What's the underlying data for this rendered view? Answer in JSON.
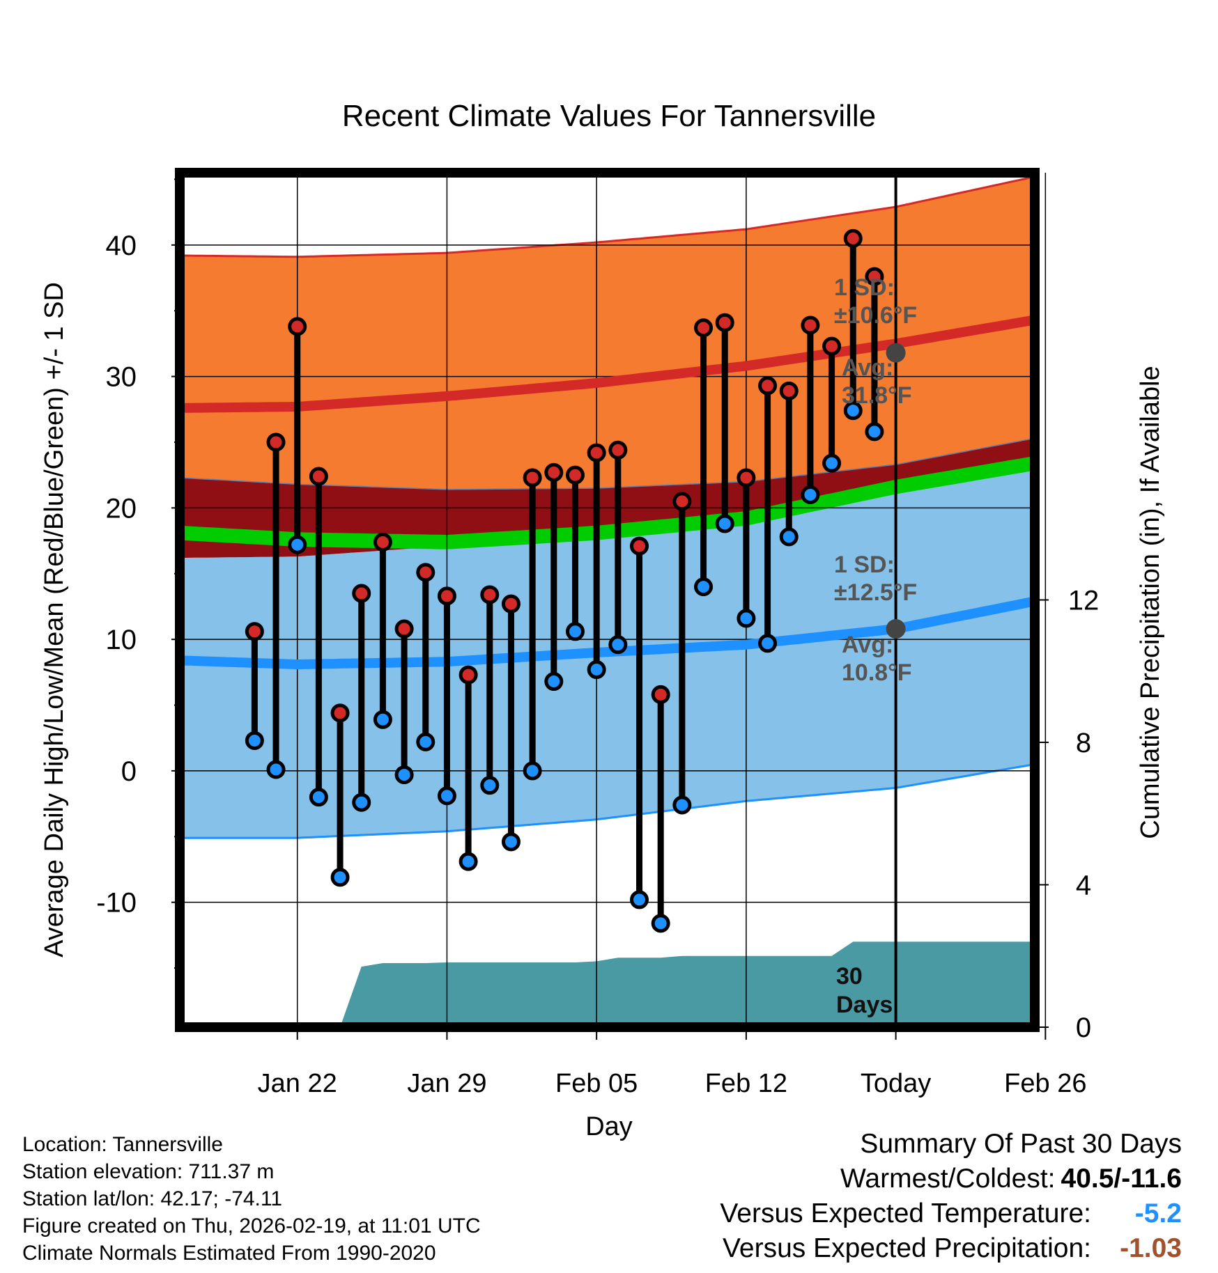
{
  "chart_data": {
    "type": "line",
    "title": "Recent Climate Values For Tannersville",
    "xlabel": "Day",
    "ylabel": "Average Daily High/Low/Mean (Red/Blue/Green) +/- 1 SD",
    "y2label": "Cumulative Precipitation (in), If Available",
    "ylim": [
      -19.5,
      45.5
    ],
    "y2lim": [
      0,
      24
    ],
    "xlim": [
      -5.5,
      34.5
    ],
    "y_ticks": [
      "-10",
      "0",
      "10",
      "20",
      "30",
      "40"
    ],
    "y2_ticks": [
      "0",
      "4",
      "8",
      "12"
    ],
    "x_ticks": [
      {
        "day": 0,
        "label": "Jan 22"
      },
      {
        "day": 7,
        "label": "Jan 29"
      },
      {
        "day": 14,
        "label": "Feb 05"
      },
      {
        "day": 21,
        "label": "Feb 12"
      },
      {
        "day": 28,
        "label": "Today"
      },
      {
        "day": 35,
        "label": "Feb 26"
      }
    ],
    "today_day": 28,
    "normals": {
      "days": [
        -5.5,
        0,
        7,
        14,
        21,
        28,
        34.5
      ],
      "high_avg": [
        27.6,
        27.7,
        28.5,
        29.5,
        30.8,
        32.5,
        34.3
      ],
      "high_plus_sd": [
        39.2,
        39.1,
        39.4,
        40.2,
        41.2,
        42.9,
        45.2
      ],
      "high_minus_sd": [
        22.3,
        21.8,
        21.4,
        21.5,
        22.0,
        23.3,
        25.3
      ],
      "mean_avg": [
        18.1,
        17.6,
        17.4,
        18.1,
        19.2,
        21.6,
        23.4
      ],
      "low_avg": [
        8.4,
        8.1,
        8.3,
        9.0,
        9.6,
        10.8,
        12.9
      ],
      "low_plus_sd": [
        16.2,
        16.3,
        17.1,
        18.3,
        19.6,
        21.6,
        23.0
      ],
      "low_minus_sd": [
        -5.1,
        -5.1,
        -4.6,
        -3.7,
        -2.3,
        -1.3,
        0.5
      ]
    },
    "highs": [
      10.6,
      25.0,
      33.8,
      22.4,
      4.4,
      13.5,
      17.4,
      10.8,
      15.1,
      13.3,
      7.3,
      13.4,
      12.7,
      22.3,
      22.7,
      22.5,
      24.2,
      24.4,
      17.1,
      5.8,
      20.5,
      33.7,
      34.1,
      22.3,
      29.3,
      28.9,
      33.9,
      32.3,
      40.5,
      37.6
    ],
    "lows": [
      2.3,
      0.1,
      17.2,
      -2.0,
      -8.1,
      -2.4,
      3.9,
      -0.3,
      2.2,
      -1.9,
      -6.9,
      -1.1,
      -5.4,
      0.0,
      6.8,
      10.6,
      7.7,
      9.6,
      -9.8,
      -11.6,
      -2.6,
      14.0,
      18.8,
      11.6,
      9.7,
      17.8,
      21.0,
      23.4,
      27.4,
      25.8
    ],
    "precip_cumulative": {
      "days": [
        -3,
        -2,
        -1,
        0,
        1,
        2,
        3,
        4,
        5,
        6,
        7,
        8,
        9,
        10,
        11,
        12,
        13,
        14,
        15,
        16,
        17,
        18,
        19,
        20,
        21,
        22,
        23,
        24,
        25,
        26,
        27,
        28,
        34.5
      ],
      "values": [
        0,
        0,
        0,
        0,
        0,
        0,
        1.7,
        1.8,
        1.8,
        1.8,
        1.82,
        1.82,
        1.82,
        1.82,
        1.82,
        1.82,
        1.82,
        1.85,
        1.95,
        1.95,
        1.95,
        2.0,
        2.0,
        2.0,
        2.0,
        2.0,
        2.0,
        2.0,
        2.0,
        2.4,
        2.4,
        2.4,
        2.4
      ]
    },
    "annotations": {
      "high_sd_line1": "1 SD:",
      "high_sd_line2": "±10.6°F",
      "high_avg_line1": "Avg:",
      "high_avg_line2": "31.8°F",
      "high_avg_value": 31.8,
      "low_sd_line1": "1 SD:",
      "low_sd_line2": "±12.5°F",
      "low_avg_line1": "Avg:",
      "low_avg_line2": "10.8°F",
      "low_avg_value": 10.8,
      "precip_line1": "30",
      "precip_line2": "Days"
    },
    "colors": {
      "high_band": "#f47b30",
      "high_line": "#d42a27",
      "overlap_band": "#900f14",
      "mean_band": "#00cc00",
      "low_band": "#85c1e9",
      "low_line": "#1e90ff",
      "precip": "#4a9aa4",
      "marker_high": "#d42a27",
      "marker_low": "#1e90ff",
      "annotation": "#555555"
    }
  },
  "footer": {
    "location": "Location: Tannersville",
    "elevation": "Station elevation: 711.37 m",
    "latlon": "Station lat/lon: 42.17; -74.11",
    "created": "Figure created on Thu, 2026-02-19, at 11:01 UTC",
    "normals": "Climate Normals Estimated From 1990-2020"
  },
  "summary": {
    "title": "Summary Of Past 30 Days",
    "warm_cold_label": "Warmest/Coldest:",
    "warm_cold_value": "40.5/-11.6",
    "temp_label": "Versus Expected Temperature:",
    "temp_value": "-5.2",
    "temp_color": "#1e90ff",
    "precip_label": "Versus Expected Precipitation:",
    "precip_value": "-1.03",
    "precip_color": "#a0522d"
  }
}
